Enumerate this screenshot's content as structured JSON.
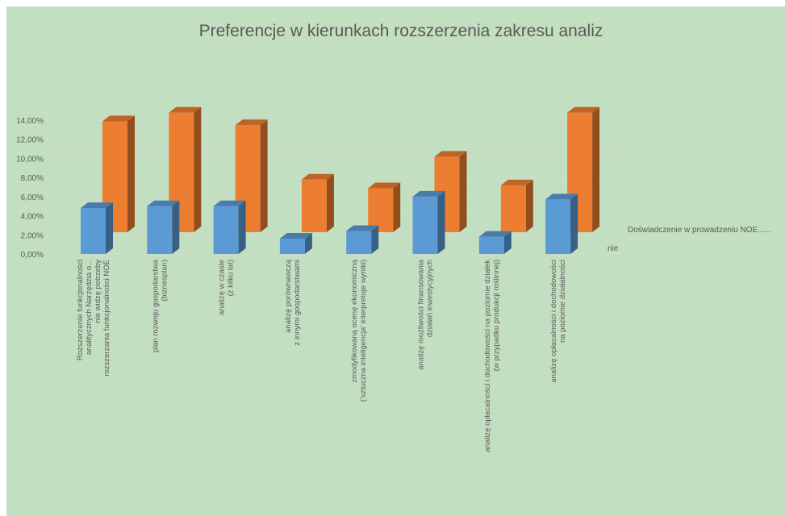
{
  "chart_data": {
    "type": "bar3d",
    "title": "Preferencje w kierunkach rozszerzenia zakresu analiz",
    "categories": [
      [
        "Rozszerzenie funkcjonalności",
        "analitycznych Narzędzia o...",
        "nie widzę potrzeby",
        "rozszerzania funkcjonalności NOE"
      ],
      [
        "plan rozwoju gospodarstwa",
        "(biznesplan)"
      ],
      [
        "analizę w czasie",
        "(z kilku lat)"
      ],
      [
        "analizę porównawczą",
        "z innymi gospodarstwami"
      ],
      [
        "zmodyfikowaną ocenę ekonomiczną",
        "('sztuczna inteligencja' interpretuje wyniki)"
      ],
      [
        "analizę możliwości finansowania",
        "działań inwestycyjnych"
      ],
      [
        "analizę opłacalności i dochodowości na poziomie działek",
        "(w przypadku produkcji roślinnej)"
      ],
      [
        "analizę opłacalności i dochodowości",
        "na poziomie działalności"
      ]
    ],
    "series": [
      {
        "name": "nie",
        "color": "#5b9bd5",
        "values": [
          4.8,
          5.0,
          5.0,
          1.6,
          2.4,
          6.0,
          1.8,
          5.7
        ]
      },
      {
        "name": "Doświadczenie w prowadzeniu NOE......",
        "color": "#ed7d31",
        "values": [
          11.6,
          12.5,
          11.2,
          5.5,
          4.6,
          7.9,
          4.9,
          12.5
        ]
      }
    ],
    "ylim": [
      0,
      14
    ],
    "yticks": [
      {
        "value": 0,
        "label": "0,00%"
      },
      {
        "value": 2,
        "label": "2,00%"
      },
      {
        "value": 4,
        "label": "4,00%"
      },
      {
        "value": 6,
        "label": "6,00%"
      },
      {
        "value": 8,
        "label": "8,00%"
      },
      {
        "value": 10,
        "label": "10,00%"
      },
      {
        "value": 12,
        "label": "12,00%"
      },
      {
        "value": 14,
        "label": "14,00%"
      }
    ],
    "grid": true
  }
}
